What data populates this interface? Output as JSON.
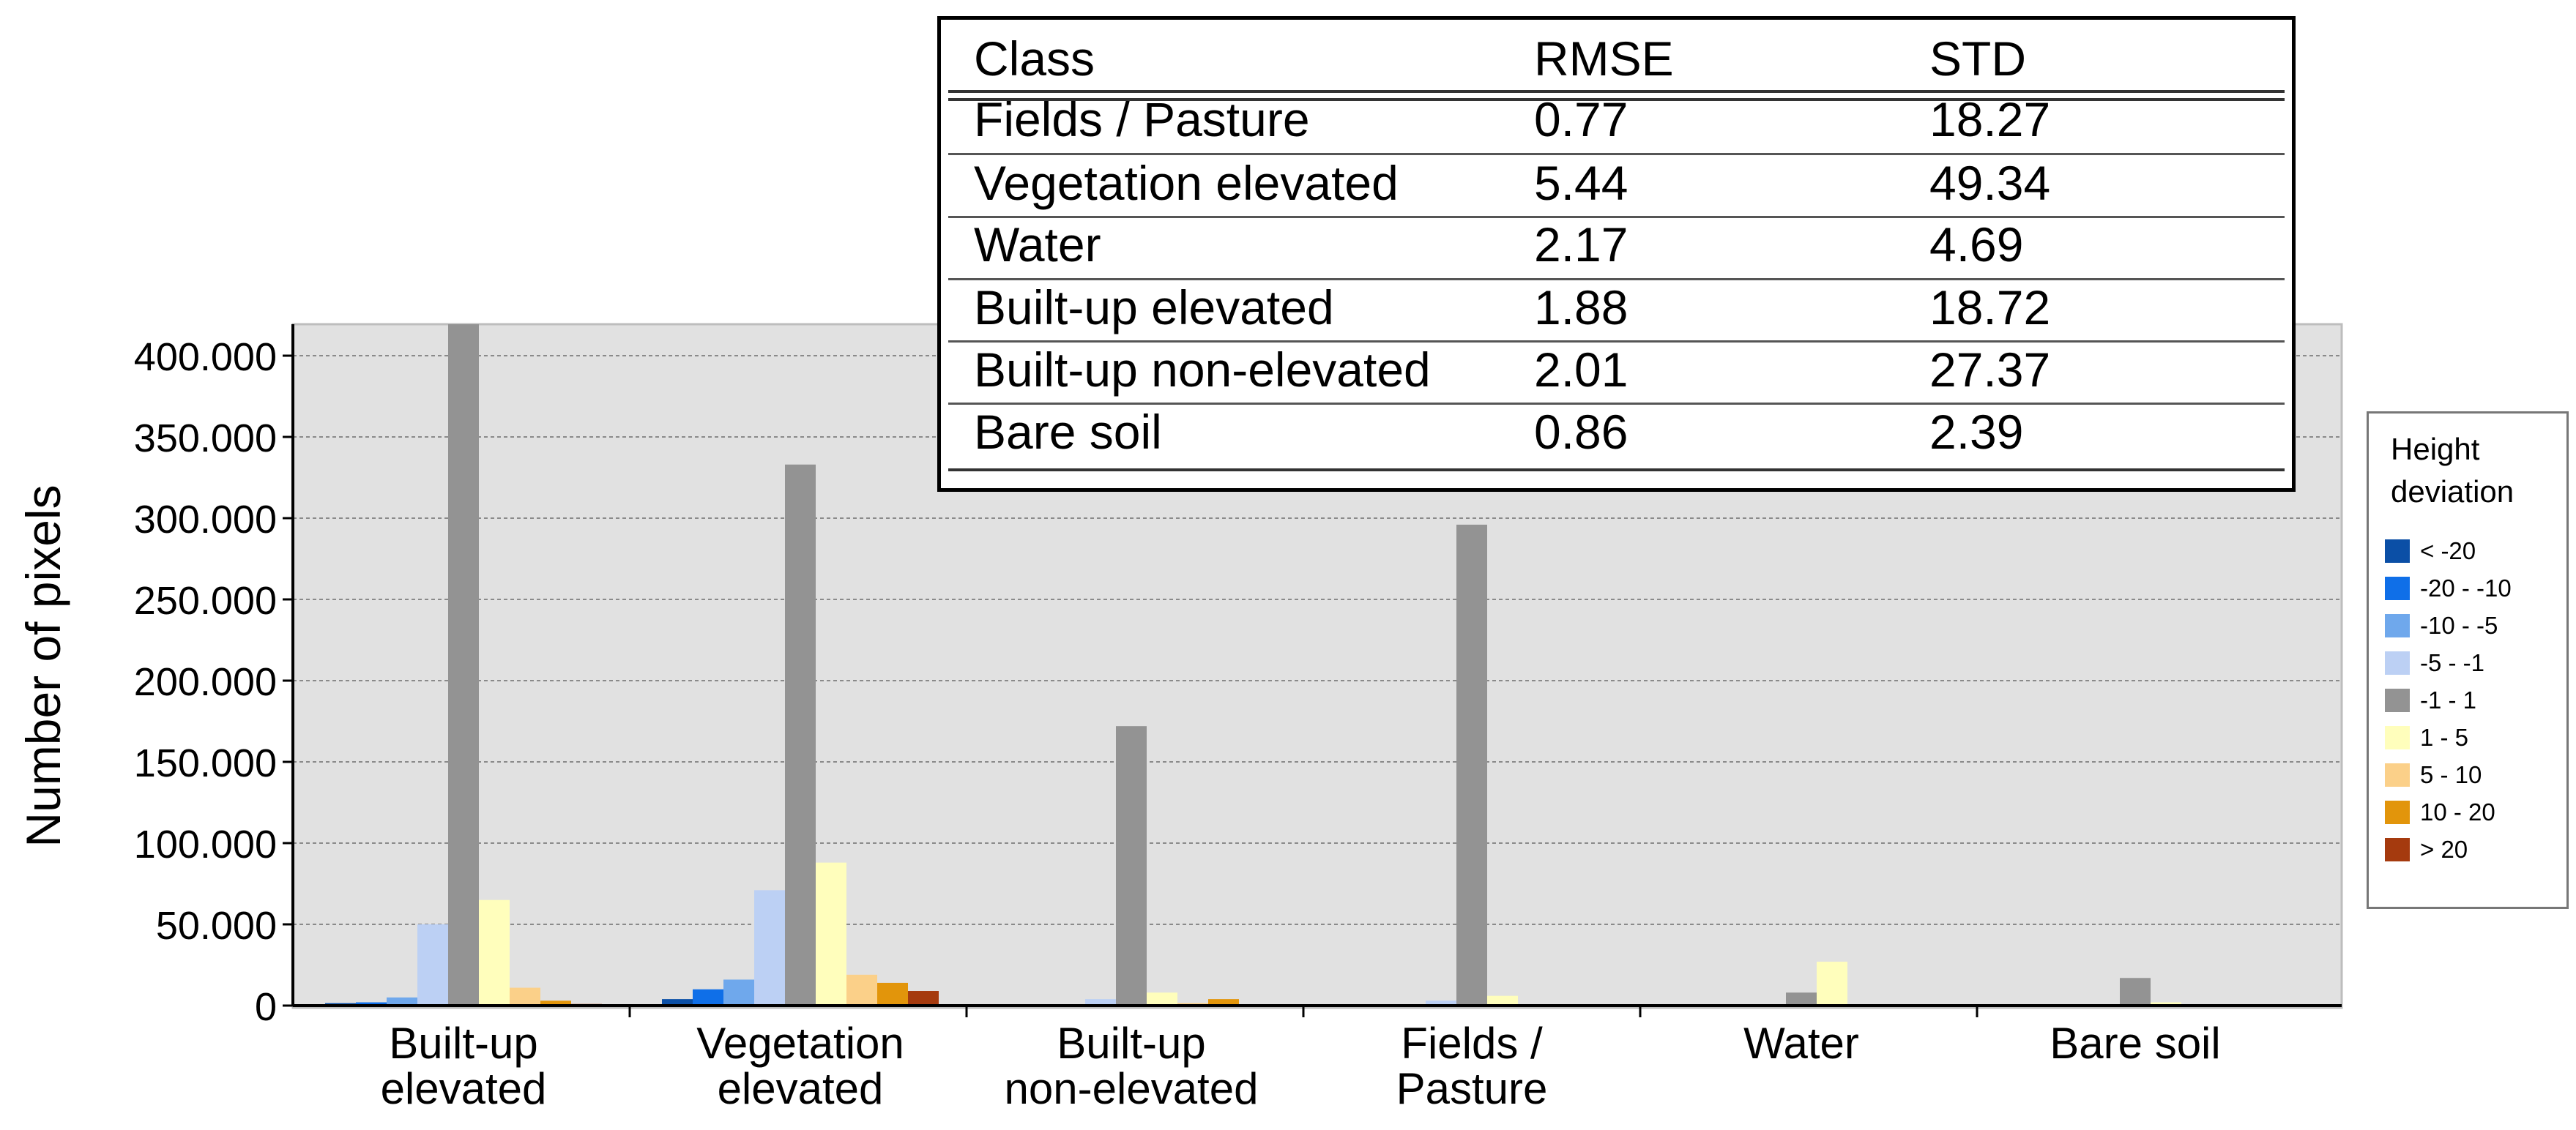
{
  "chart_data": {
    "type": "bar",
    "ylabel": "Number of pixels",
    "xlabel": "",
    "ylim": [
      0,
      420000
    ],
    "yticks": [
      0,
      50000,
      100000,
      150000,
      200000,
      250000,
      300000,
      350000,
      400000
    ],
    "ytick_labels": [
      "0",
      "50.000",
      "100.000",
      "150.000",
      "200.000",
      "250.000",
      "300.000",
      "350.000",
      "400.000"
    ],
    "grid": true,
    "legend_position": "right",
    "legend_title": "Height\ndeviation",
    "categories": [
      "Built-up\nelevated",
      "Vegetation\nelevated",
      "Built-up\nnon-elevated",
      "Fields /\nPasture",
      "Water",
      "Bare soil"
    ],
    "series": [
      {
        "name": "< -20",
        "color": "#0b4fa6",
        "values": [
          1500,
          4000,
          0,
          0,
          0,
          0
        ]
      },
      {
        "name": "-20 - -10",
        "color": "#0f6fe8",
        "values": [
          2000,
          10000,
          0,
          0,
          0,
          0
        ]
      },
      {
        "name": "-10 - -5",
        "color": "#6fa8ec",
        "values": [
          5000,
          16000,
          500,
          0,
          0,
          0
        ]
      },
      {
        "name": "-5 - -1",
        "color": "#bcd0f4",
        "values": [
          50000,
          71000,
          4000,
          3000,
          500,
          0
        ]
      },
      {
        "name": "-1 - 1",
        "color": "#939393",
        "values": [
          420000,
          333000,
          172000,
          296000,
          8000,
          17000
        ]
      },
      {
        "name": "1 - 5",
        "color": "#fffebc",
        "values": [
          65000,
          88000,
          8000,
          6000,
          27000,
          2000
        ]
      },
      {
        "name": "5 - 10",
        "color": "#fbd089",
        "values": [
          11000,
          19000,
          1500,
          500,
          0,
          0
        ]
      },
      {
        "name": "10 - 20",
        "color": "#e2950b",
        "values": [
          3000,
          14000,
          4000,
          0,
          0,
          0
        ]
      },
      {
        "name": "> 20",
        "color": "#a53a0e",
        "values": [
          1000,
          9000,
          0,
          0,
          0,
          0
        ]
      }
    ],
    "colors": {
      "plot_background": "#e1e1e1",
      "grid": "#8a8a8a",
      "axis": "#000000"
    }
  },
  "stats_table": {
    "headers": [
      "Class",
      "RMSE",
      "STD"
    ],
    "rows": [
      [
        "Fields / Pasture",
        "0.77",
        "18.27"
      ],
      [
        "Vegetation elevated",
        "5.44",
        "49.34"
      ],
      [
        "Water",
        "2.17",
        "4.69"
      ],
      [
        "Built-up elevated",
        "1.88",
        "18.72"
      ],
      [
        "Built-up non-elevated",
        "2.01",
        "27.37"
      ],
      [
        "Bare soil",
        "0.86",
        "2.39"
      ]
    ]
  }
}
